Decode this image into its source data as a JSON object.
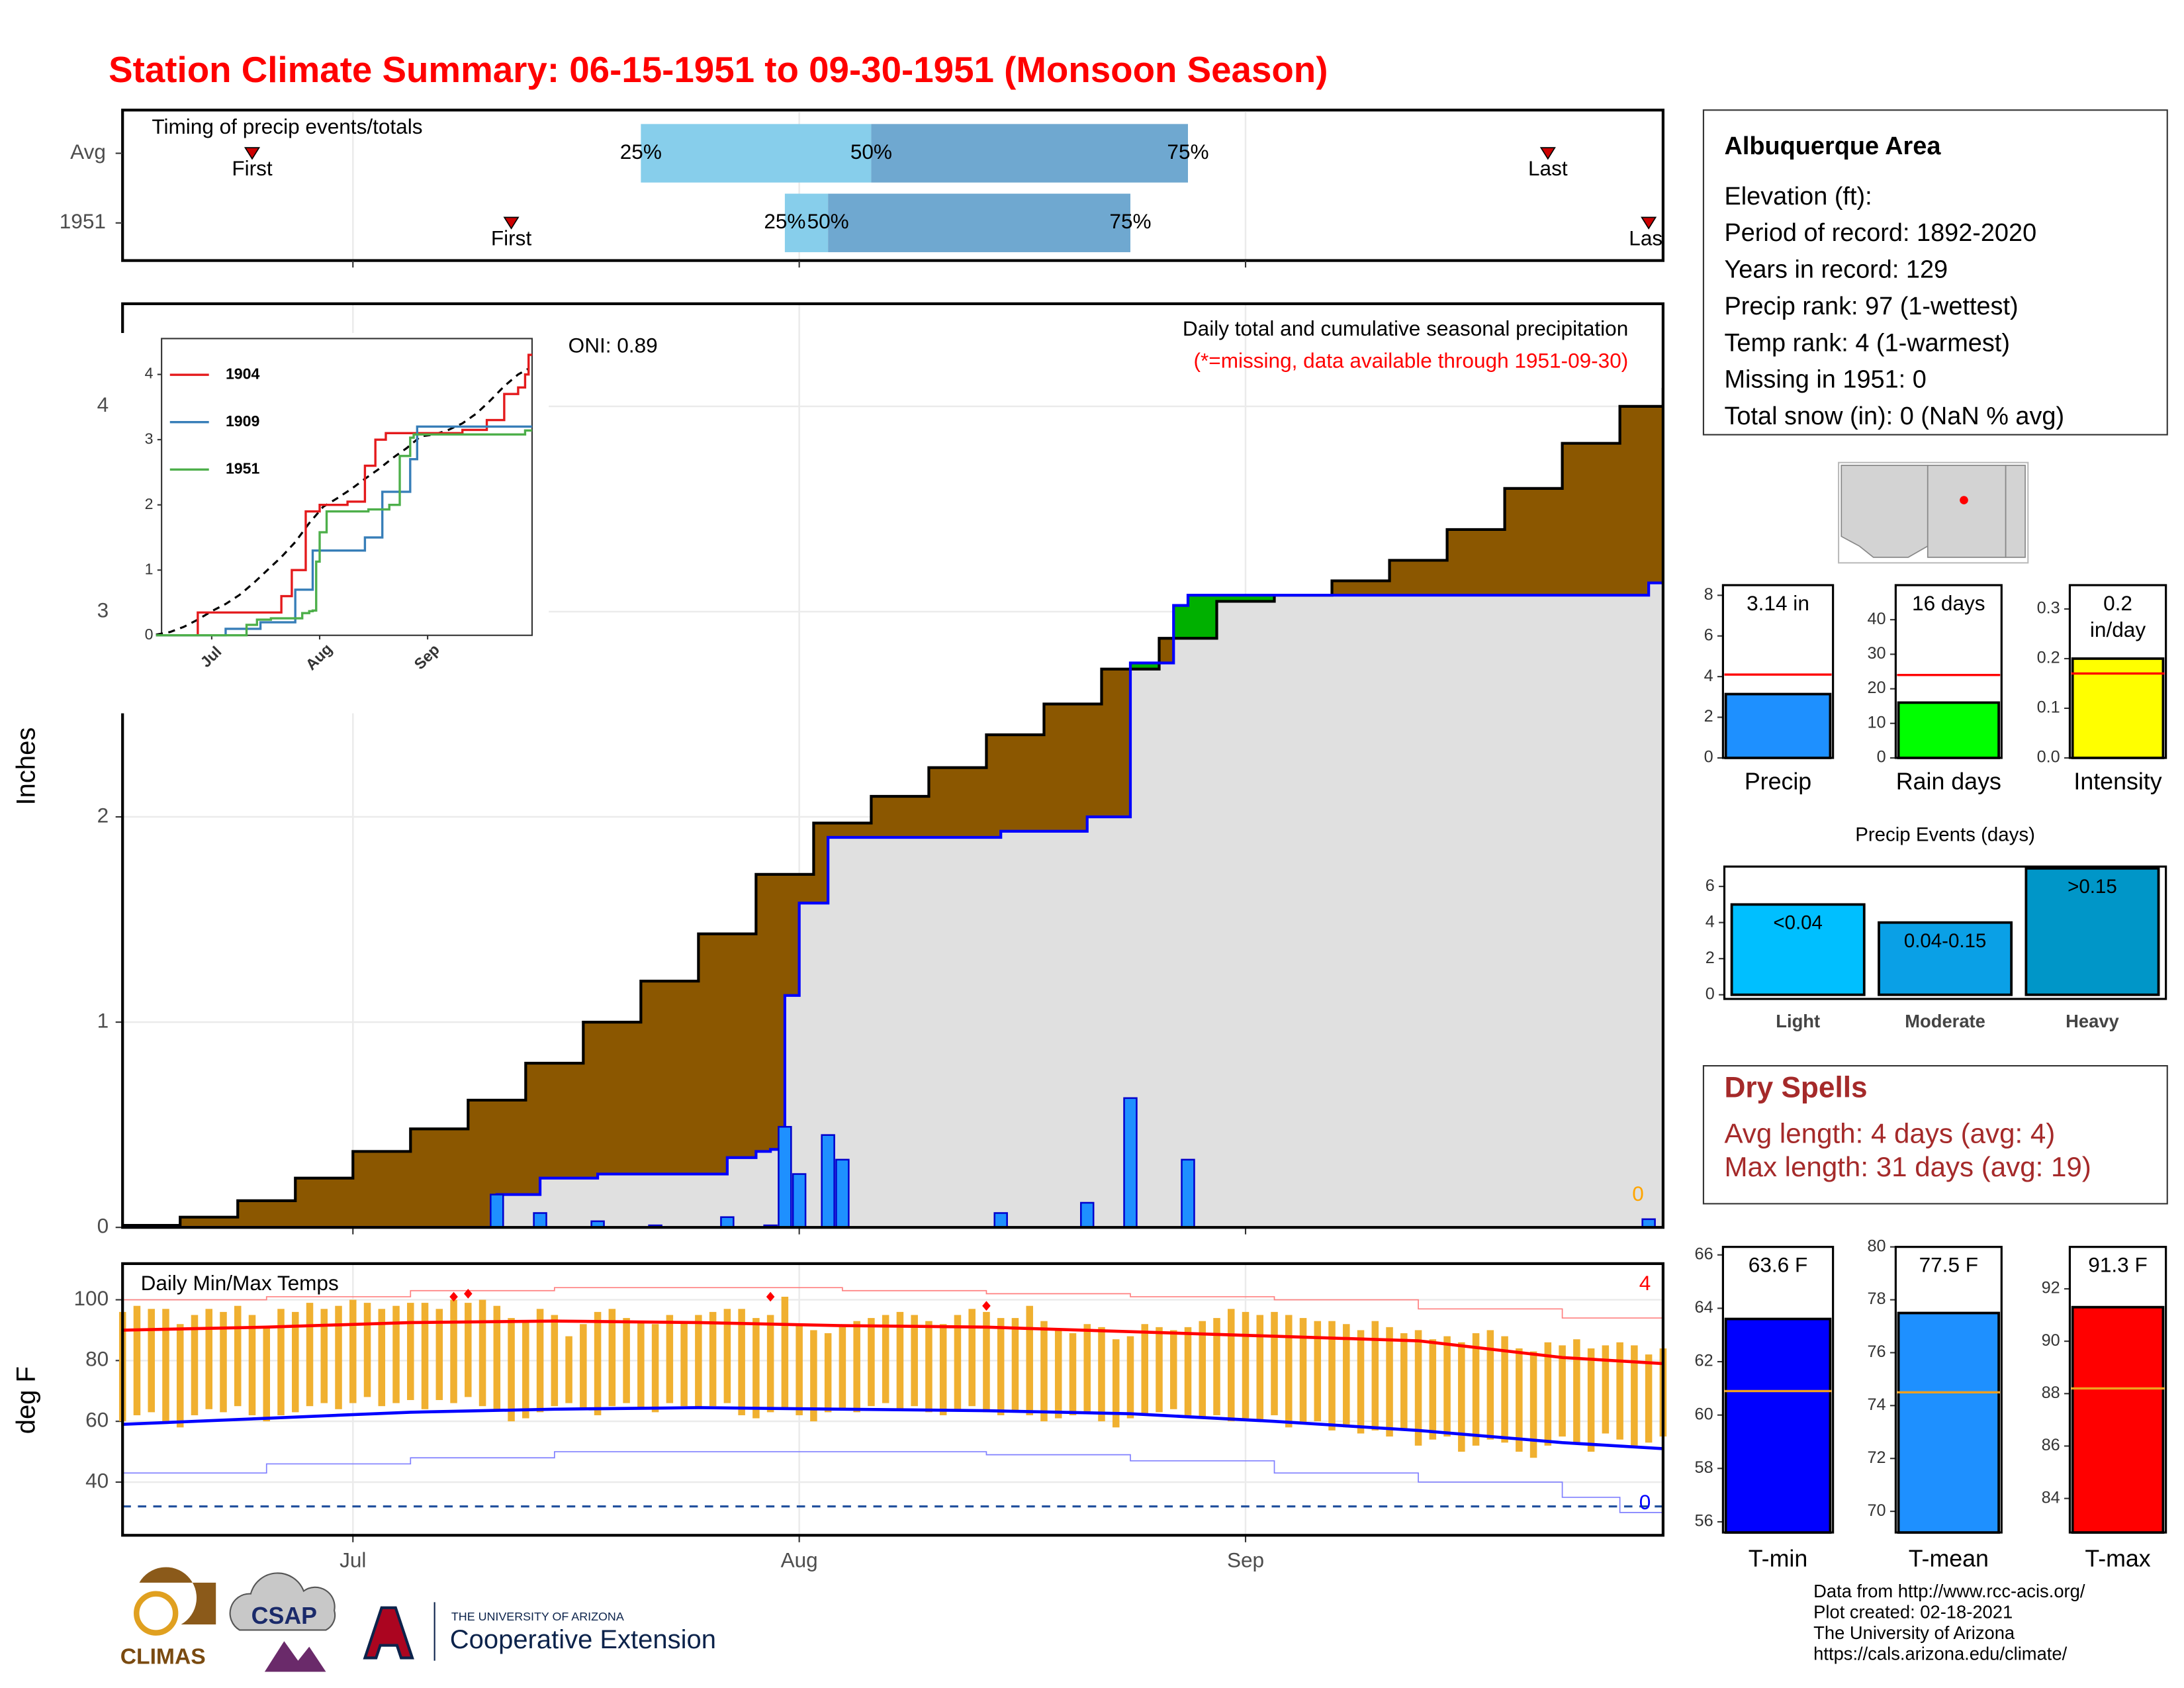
{
  "title": "Station Climate Summary: 06-15-1951 to 09-30-1951 (Monsoon Season)",
  "station": {
    "name": "Albuquerque Area",
    "lines": [
      "Elevation (ft):",
      "Period of record: 1892-2020",
      "Years in record: 129",
      "Precip rank: 97 (1-wettest)",
      "Temp rank: 4 (1-warmest)",
      "Missing in 1951: 0",
      "Total snow (in): 0 (NaN % avg)"
    ]
  },
  "dry_spells": {
    "title": "Dry Spells",
    "lines": [
      "Avg length: 4 days (avg: 4)",
      "Max length: 31 days (avg: 19)"
    ]
  },
  "footer": [
    "Data from http://www.rcc-acis.org/",
    "Plot created: 02-18-2021",
    "The University of Arizona",
    "https://cals.arizona.edu/climate/"
  ],
  "logos": [
    "CLIMAS",
    "CSAP",
    "THE UNIVERSITY OF ARIZONA",
    "Cooperative Extension"
  ],
  "chart_data": [
    {
      "type": "timeline",
      "title": "Timing of precip events/totals",
      "categories": [
        "Avg",
        "1951"
      ],
      "first": [
        9,
        27
      ],
      "last": [
        99,
        106
      ],
      "first_label": "First",
      "last_label": "Last",
      "quantiles": [
        [
          36,
          52,
          74
        ],
        [
          46,
          49,
          70
        ]
      ],
      "quantile_labels": [
        "25%",
        "50%",
        "75%"
      ],
      "colors": [
        "#87ceeb",
        "#6fa8d0"
      ],
      "marker_color": "#cc0000"
    },
    {
      "type": "area_step",
      "title": "Daily total and cumulative seasonal precipitation",
      "subtitle": "(*=missing, data available through 1951-09-30)",
      "annotation": "ONI: 0.89",
      "missing_count": 0,
      "ylabel": "Inches",
      "ylim": [
        0,
        4.5
      ],
      "yticks": [
        0,
        1,
        2,
        3,
        4
      ],
      "grid": true,
      "above_color": "#00b000",
      "average": {
        "fill": "#8b5700",
        "line": "#000000",
        "x": [
          0,
          4,
          8,
          12,
          16,
          20,
          24,
          28,
          32,
          36,
          40,
          44,
          48,
          52,
          56,
          60,
          64,
          68,
          72,
          76,
          80,
          84,
          88,
          92,
          96,
          100,
          104,
          107
        ],
        "values": [
          0.01,
          0.05,
          0.13,
          0.24,
          0.37,
          0.48,
          0.62,
          0.8,
          1.0,
          1.2,
          1.43,
          1.72,
          1.97,
          2.1,
          2.24,
          2.4,
          2.55,
          2.72,
          2.87,
          3.05,
          3.08,
          3.15,
          3.25,
          3.4,
          3.6,
          3.82,
          4.0,
          4.09
        ]
      },
      "observed": {
        "fill": "#e0e0e0",
        "line": "#0000ff",
        "x": [
          0,
          26,
          29,
          33,
          42,
          44,
          45,
          46,
          47,
          49,
          61,
          67,
          70,
          73,
          74,
          106
        ],
        "values": [
          0,
          0.16,
          0.24,
          0.26,
          0.34,
          0.37,
          0.38,
          1.13,
          1.58,
          1.9,
          1.93,
          2.0,
          2.75,
          3.03,
          3.08,
          3.14
        ]
      },
      "daily": {
        "color": "#1e90ff",
        "line": "#0000cd",
        "x": [
          26,
          29,
          33,
          37,
          42,
          45,
          46,
          47,
          49,
          50,
          61,
          67,
          70,
          74,
          106
        ],
        "values": [
          0.16,
          0.07,
          0.03,
          0.01,
          0.05,
          0.01,
          0.49,
          0.26,
          0.45,
          0.33,
          0.07,
          0.12,
          0.63,
          0.33,
          0.04
        ]
      }
    },
    {
      "type": "line",
      "ylim": [
        0,
        4.55
      ],
      "yticks": [
        0,
        1,
        2,
        3,
        4
      ],
      "xlim": [
        1.6,
        108
      ],
      "xticks": [
        {
          "value": 16,
          "label": "Jul"
        },
        {
          "value": 47,
          "label": "Aug"
        },
        {
          "value": 78,
          "label": "Sep"
        }
      ],
      "series": [
        {
          "name": "1904",
          "color": "#e41a1c",
          "x": [
            0,
            12,
            34,
            36,
            39,
            43,
            47,
            55,
            60,
            63,
            66,
            88,
            95,
            100,
            104,
            106,
            107
          ],
          "values": [
            0,
            0.35,
            0.35,
            0.6,
            1.0,
            1.9,
            2.0,
            2.05,
            2.6,
            3.0,
            3.1,
            3.15,
            3.3,
            3.7,
            3.8,
            4.0,
            4.3
          ]
        },
        {
          "name": "1909",
          "color": "#377eb8",
          "x": [
            0,
            20,
            30,
            40,
            45,
            55,
            60,
            65,
            73,
            75,
            107
          ],
          "values": [
            0,
            0.1,
            0.2,
            0.7,
            1.3,
            1.3,
            1.5,
            2.2,
            2.7,
            3.2,
            3.2
          ]
        },
        {
          "name": "1951",
          "color": "#4daf4a",
          "x": [
            0,
            26,
            29,
            33,
            42,
            44,
            45,
            46,
            47,
            49,
            61,
            67,
            70,
            73,
            74,
            106
          ],
          "values": [
            0,
            0.16,
            0.24,
            0.26,
            0.34,
            0.37,
            0.38,
            1.13,
            1.58,
            1.9,
            1.93,
            2.0,
            2.75,
            3.03,
            3.08,
            3.14
          ]
        }
      ]
    },
    {
      "type": "temperature",
      "title": "Daily Min/Max Temps",
      "ylabel": "deg F",
      "ylim": [
        22.5,
        111.9
      ],
      "yticks": [
        40,
        60,
        80,
        100
      ],
      "xlim": [
        0,
        107
      ],
      "xticks": [
        {
          "value": 16,
          "label": "Jul"
        },
        {
          "value": 47,
          "label": "Aug"
        },
        {
          "value": 78,
          "label": "Sep"
        }
      ],
      "grid": true,
      "bar_color": "#f0b030",
      "x": [
        0,
        1,
        2,
        3,
        4,
        5,
        6,
        7,
        8,
        9,
        10,
        11,
        12,
        13,
        14,
        15,
        16,
        17,
        18,
        19,
        20,
        21,
        22,
        23,
        24,
        25,
        26,
        27,
        28,
        29,
        30,
        31,
        32,
        33,
        34,
        35,
        36,
        37,
        38,
        39,
        40,
        41,
        42,
        43,
        44,
        45,
        46,
        47,
        48,
        49,
        50,
        51,
        52,
        53,
        54,
        55,
        56,
        57,
        58,
        59,
        60,
        61,
        62,
        63,
        64,
        65,
        66,
        67,
        68,
        69,
        70,
        71,
        72,
        73,
        74,
        75,
        76,
        77,
        78,
        79,
        80,
        81,
        82,
        83,
        84,
        85,
        86,
        87,
        88,
        89,
        90,
        91,
        92,
        93,
        94,
        95,
        96,
        97,
        98,
        99,
        100,
        101,
        102,
        103,
        104,
        105,
        106,
        107
      ],
      "tmax": [
        96,
        98,
        97,
        97,
        92,
        95,
        97,
        96,
        98,
        95,
        91,
        97,
        96,
        99,
        97,
        98,
        100,
        99,
        97,
        98,
        99,
        99,
        97,
        100,
        99,
        100,
        98,
        94,
        93,
        97,
        95,
        88,
        92,
        96,
        97,
        94,
        93,
        92,
        95,
        93,
        95,
        96,
        97,
        97,
        94,
        95,
        101,
        92,
        90,
        89,
        91,
        93,
        94,
        95,
        96,
        95,
        93,
        92,
        95,
        97,
        96,
        94,
        94,
        98,
        93,
        90,
        89,
        92,
        91,
        87,
        88,
        92,
        91,
        90,
        91,
        93,
        94,
        97,
        96,
        95,
        96,
        95,
        94,
        93,
        93,
        92,
        90,
        93,
        91,
        89,
        90,
        87,
        88,
        86,
        89,
        90,
        88,
        84,
        83,
        86,
        85,
        87,
        84,
        85,
        86,
        85,
        82,
        84
      ],
      "tmin": [
        60,
        62,
        63,
        60,
        58,
        62,
        64,
        63,
        65,
        62,
        60,
        62,
        63,
        65,
        66,
        64,
        66,
        68,
        65,
        66,
        67,
        64,
        67,
        66,
        68,
        65,
        64,
        60,
        61,
        63,
        65,
        66,
        64,
        62,
        65,
        66,
        64,
        63,
        66,
        65,
        64,
        65,
        66,
        62,
        61,
        63,
        64,
        62,
        60,
        63,
        64,
        63,
        65,
        66,
        64,
        65,
        63,
        62,
        64,
        65,
        63,
        62,
        63,
        62,
        60,
        61,
        62,
        63,
        60,
        58,
        61,
        62,
        63,
        64,
        62,
        61,
        62,
        60,
        61,
        60,
        62,
        58,
        59,
        60,
        57,
        58,
        56,
        57,
        55,
        57,
        52,
        54,
        55,
        50,
        52,
        54,
        53,
        50,
        48,
        52,
        55,
        53,
        50,
        56,
        54,
        52,
        53,
        55
      ],
      "avg_max": {
        "color": "#ff0000",
        "x": [
          0,
          10,
          20,
          30,
          40,
          50,
          60,
          70,
          80,
          90,
          100,
          107
        ],
        "values": [
          90,
          91,
          92.5,
          93,
          92.5,
          91.5,
          91,
          89.5,
          88,
          86.5,
          81,
          79
        ]
      },
      "avg_min": {
        "color": "#0000ff",
        "x": [
          0,
          10,
          20,
          30,
          40,
          50,
          60,
          70,
          80,
          90,
          100,
          107
        ],
        "values": [
          59,
          61,
          63,
          64,
          64.5,
          64,
          63.5,
          62.5,
          60,
          57,
          53,
          51
        ]
      },
      "record_max": {
        "color": "#ff8080",
        "x": [
          0,
          10,
          20,
          30,
          40,
          50,
          60,
          70,
          80,
          90,
          100,
          107
        ],
        "values": [
          100,
          101,
          103,
          104,
          104,
          103,
          102,
          101,
          100,
          97,
          94,
          91
        ]
      },
      "record_min": {
        "color": "#8080ff",
        "x": [
          0,
          10,
          20,
          30,
          40,
          50,
          60,
          70,
          80,
          90,
          100,
          104,
          107
        ],
        "values": [
          43,
          46,
          48,
          50,
          50,
          50,
          49,
          47,
          43,
          40,
          35,
          30,
          33
        ]
      },
      "records": {
        "color": "#ff0000",
        "x": [
          23,
          24,
          45,
          60
        ],
        "values": [
          101,
          102,
          101,
          98
        ]
      },
      "record_count": 4,
      "freeze": 32,
      "freeze_color": "#1f4e9c",
      "freeze_count": 0
    },
    {
      "type": "bar",
      "categories": [
        "Precip"
      ],
      "values": [
        3.14
      ],
      "value_labels": [
        "3.14 in"
      ],
      "average": 4.1,
      "ylim": [
        0,
        8.5
      ],
      "yticks": [
        0,
        2,
        4,
        6,
        8
      ],
      "colors": [
        "#1e90ff"
      ],
      "average_color": "#ff0000"
    },
    {
      "type": "bar",
      "categories": [
        "Rain days"
      ],
      "values": [
        16
      ],
      "value_labels": [
        "16 days"
      ],
      "average": 24,
      "ylim": [
        0,
        50
      ],
      "yticks": [
        0,
        10,
        20,
        30,
        40
      ],
      "colors": [
        "#00ff00"
      ],
      "average_color": "#ff0000"
    },
    {
      "type": "bar",
      "categories": [
        "Intensity"
      ],
      "values": [
        0.2
      ],
      "value_labels": [
        "0.2 in/day"
      ],
      "average": 0.17,
      "ylim": [
        0,
        0.348
      ],
      "yticks": [
        {
          "value": 0,
          "label": "0.0"
        },
        0.1,
        0.2,
        0.3
      ],
      "colors": [
        "#ffff00"
      ],
      "average_color": "#ff0000"
    },
    {
      "type": "bar",
      "title": "Precip Events (days)",
      "categories": [
        "Light",
        "Moderate",
        "Heavy"
      ],
      "values": [
        5,
        4,
        7
      ],
      "thresholds": [
        "<0.04",
        "0.04-0.15",
        ">0.15"
      ],
      "ylim": [
        -0.23,
        7.1
      ],
      "yticks": [
        0,
        2,
        4,
        6
      ],
      "colors": [
        "#00bfff",
        "#0aa0e6",
        "#0096c8"
      ]
    },
    {
      "type": "bar",
      "categories": [
        "T-min"
      ],
      "values": [
        63.6
      ],
      "value_labels": [
        "63.6 F"
      ],
      "average": 60.9,
      "ylim": [
        55.6,
        66.3
      ],
      "yticks": [
        56,
        58,
        60,
        62,
        64,
        66
      ],
      "colors": [
        "#0000ff"
      ],
      "average_color": "#f0a020"
    },
    {
      "type": "bar",
      "categories": [
        "T-mean"
      ],
      "values": [
        77.5
      ],
      "value_labels": [
        "77.5 F"
      ],
      "average": 74.5,
      "ylim": [
        69.2,
        80
      ],
      "yticks": [
        70,
        72,
        74,
        76,
        78,
        80
      ],
      "colors": [
        "#1e90ff"
      ],
      "average_color": "#f0a020"
    },
    {
      "type": "bar",
      "categories": [
        "T-max"
      ],
      "values": [
        91.3
      ],
      "value_labels": [
        "91.3 F"
      ],
      "average": 88.2,
      "ylim": [
        82.7,
        93.6
      ],
      "yticks": [
        84,
        86,
        88,
        90,
        92
      ],
      "colors": [
        "#ff0000"
      ],
      "average_color": "#f0a020"
    }
  ]
}
